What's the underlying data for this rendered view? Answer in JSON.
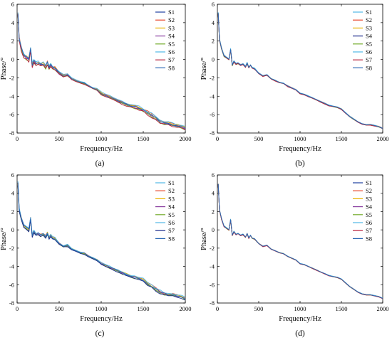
{
  "figure": {
    "panel_labels": [
      "(a)",
      "(b)",
      "(c)",
      "(d)"
    ]
  },
  "chart_data": [
    {
      "type": "line",
      "panel": "(a)",
      "xlabel": "Frequency/Hz",
      "ylabel": "Phase/°",
      "xlim": [
        0,
        2000
      ],
      "ylim": [
        -8,
        6
      ],
      "xticks": [
        0,
        500,
        1000,
        1500,
        2000
      ],
      "yticks": [
        -8,
        -6,
        -4,
        -2,
        0,
        2,
        4,
        6
      ],
      "grid": false,
      "legend_position": "top-right",
      "series_names": [
        "S1",
        "S2",
        "S3",
        "S4",
        "S5",
        "S6",
        "S7",
        "S8"
      ],
      "colors": [
        "#1f3f9f",
        "#e8462b",
        "#e8b100",
        "#8a3fa0",
        "#73ac2b",
        "#4fb7e6",
        "#b7203b",
        "#2a67b3"
      ],
      "x": [
        10,
        25,
        50,
        80,
        110,
        140,
        160,
        180,
        200,
        225,
        250,
        280,
        310,
        340,
        360,
        380,
        400,
        420,
        450,
        500,
        550,
        600,
        650,
        700,
        750,
        800,
        850,
        900,
        950,
        1000,
        1050,
        1100,
        1150,
        1200,
        1250,
        1300,
        1350,
        1400,
        1450,
        1500,
        1550,
        1600,
        1650,
        1700,
        1750,
        1800,
        1850,
        1900,
        1950,
        2000
      ],
      "base": [
        5.0,
        2.2,
        1.2,
        0.4,
        0.2,
        0.0,
        1.1,
        -0.6,
        -0.2,
        -0.5,
        -0.4,
        -0.6,
        -0.5,
        -0.8,
        -0.4,
        -0.9,
        -0.6,
        -0.9,
        -1.0,
        -1.5,
        -1.8,
        -1.7,
        -2.1,
        -2.3,
        -2.5,
        -2.6,
        -2.9,
        -3.1,
        -3.3,
        -3.7,
        -3.9,
        -4.1,
        -4.3,
        -4.5,
        -4.7,
        -4.9,
        -5.1,
        -5.2,
        -5.3,
        -5.5,
        -5.8,
        -6.1,
        -6.4,
        -6.7,
        -6.9,
        -7.0,
        -7.1,
        -7.2,
        -7.3,
        -7.5
      ],
      "spread": [
        0.3,
        0.3,
        0.25,
        0.2,
        0.25,
        0.25,
        0.2,
        0.25,
        0.2,
        0.2,
        0.2,
        0.2,
        0.2,
        0.25,
        0.25,
        0.25,
        0.2,
        0.2,
        0.2,
        0.15,
        0.15,
        0.15,
        0.1,
        0.1,
        0.1,
        0.1,
        0.1,
        0.1,
        0.12,
        0.15,
        0.15,
        0.15,
        0.15,
        0.15,
        0.18,
        0.18,
        0.18,
        0.2,
        0.2,
        0.2,
        0.25,
        0.25,
        0.25,
        0.25,
        0.22,
        0.2,
        0.2,
        0.2,
        0.2,
        0.2
      ],
      "offsets": [
        0.0,
        0.6,
        0.4,
        -0.3,
        -0.6,
        0.8,
        -0.8,
        0.2
      ]
    },
    {
      "type": "line",
      "panel": "(b)",
      "xlabel": "Frequency/Hz",
      "ylabel": "Phase/°",
      "xlim": [
        0,
        2000
      ],
      "ylim": [
        -8,
        6
      ],
      "xticks": [
        0,
        500,
        1000,
        1500,
        2000
      ],
      "yticks": [
        -8,
        -6,
        -4,
        -2,
        0,
        2,
        4,
        6
      ],
      "grid": false,
      "legend_position": "top-right",
      "series_names": [
        "S1",
        "S2",
        "S3",
        "S4",
        "S5",
        "S6",
        "S7",
        "S8"
      ],
      "colors": [
        "#4fb7e6",
        "#e8462b",
        "#e8b100",
        "#1a2a8a",
        "#73ac2b",
        "#4fb7e6",
        "#b7203b",
        "#2a67b3"
      ],
      "x": [
        10,
        25,
        50,
        80,
        110,
        140,
        160,
        180,
        200,
        225,
        250,
        280,
        310,
        340,
        360,
        380,
        400,
        420,
        450,
        500,
        550,
        600,
        650,
        700,
        750,
        800,
        850,
        900,
        950,
        1000,
        1050,
        1100,
        1150,
        1200,
        1250,
        1300,
        1350,
        1400,
        1450,
        1500,
        1550,
        1600,
        1650,
        1700,
        1750,
        1800,
        1850,
        1900,
        1950,
        2000
      ],
      "base": [
        5.0,
        2.2,
        1.2,
        0.4,
        0.2,
        0.0,
        1.1,
        -0.6,
        -0.2,
        -0.5,
        -0.4,
        -0.6,
        -0.5,
        -0.8,
        -0.4,
        -0.9,
        -0.6,
        -0.9,
        -1.0,
        -1.5,
        -1.8,
        -1.7,
        -2.1,
        -2.3,
        -2.5,
        -2.6,
        -2.9,
        -3.1,
        -3.3,
        -3.7,
        -3.8,
        -4.0,
        -4.2,
        -4.4,
        -4.6,
        -4.8,
        -5.0,
        -5.1,
        -5.2,
        -5.4,
        -5.8,
        -6.2,
        -6.5,
        -6.8,
        -7.0,
        -7.1,
        -7.1,
        -7.2,
        -7.3,
        -7.5
      ],
      "spread": [
        0.1,
        0.1,
        0.1,
        0.1,
        0.1,
        0.1,
        0.1,
        0.1,
        0.08,
        0.08,
        0.08,
        0.08,
        0.08,
        0.08,
        0.08,
        0.08,
        0.06,
        0.06,
        0.06,
        0.06,
        0.06,
        0.06,
        0.05,
        0.05,
        0.05,
        0.05,
        0.05,
        0.05,
        0.05,
        0.05,
        0.05,
        0.05,
        0.05,
        0.05,
        0.05,
        0.05,
        0.05,
        0.05,
        0.05,
        0.05,
        0.05,
        0.05,
        0.05,
        0.05,
        0.05,
        0.05,
        0.05,
        0.05,
        0.05,
        0.05
      ],
      "offsets": [
        0.0,
        0.6,
        0.4,
        -0.3,
        -0.6,
        0.8,
        -0.8,
        0.2
      ]
    },
    {
      "type": "line",
      "panel": "(c)",
      "xlabel": "Frequency/Hz",
      "ylabel": "Phase/°",
      "xlim": [
        0,
        2000
      ],
      "ylim": [
        -8,
        6
      ],
      "xticks": [
        0,
        500,
        1000,
        1500,
        2000
      ],
      "yticks": [
        -8,
        -6,
        -4,
        -2,
        0,
        2,
        4,
        6
      ],
      "grid": false,
      "legend_position": "top-right",
      "series_names": [
        "S1",
        "S2",
        "S3",
        "S4",
        "S5",
        "S6",
        "S7",
        "S8"
      ],
      "colors": [
        "#4fb7e6",
        "#e8462b",
        "#e8b100",
        "#8a3fa0",
        "#73ac2b",
        "#4fb7e6",
        "#1a2a8a",
        "#2a67b3"
      ],
      "x": [
        10,
        25,
        50,
        80,
        110,
        140,
        160,
        180,
        200,
        225,
        250,
        280,
        310,
        340,
        360,
        380,
        400,
        420,
        450,
        500,
        550,
        600,
        650,
        700,
        750,
        800,
        850,
        900,
        950,
        1000,
        1050,
        1100,
        1150,
        1200,
        1250,
        1300,
        1350,
        1400,
        1450,
        1500,
        1550,
        1600,
        1650,
        1700,
        1750,
        1800,
        1850,
        1900,
        1950,
        2000
      ],
      "base": [
        5.0,
        2.2,
        1.2,
        0.4,
        0.2,
        0.0,
        1.2,
        -0.6,
        -0.2,
        -0.5,
        -0.4,
        -0.6,
        -0.5,
        -0.8,
        -0.4,
        -0.9,
        -0.6,
        -0.9,
        -1.0,
        -1.5,
        -1.8,
        -1.7,
        -2.1,
        -2.3,
        -2.5,
        -2.6,
        -2.9,
        -3.1,
        -3.3,
        -3.7,
        -3.9,
        -4.1,
        -4.3,
        -4.5,
        -4.7,
        -4.9,
        -5.1,
        -5.2,
        -5.3,
        -5.5,
        -5.9,
        -6.2,
        -6.5,
        -6.8,
        -7.0,
        -7.1,
        -7.1,
        -7.2,
        -7.3,
        -7.5
      ],
      "spread": [
        0.25,
        0.25,
        0.2,
        0.18,
        0.2,
        0.2,
        0.18,
        0.2,
        0.15,
        0.15,
        0.15,
        0.15,
        0.15,
        0.2,
        0.2,
        0.2,
        0.15,
        0.15,
        0.15,
        0.12,
        0.12,
        0.12,
        0.1,
        0.1,
        0.1,
        0.1,
        0.1,
        0.1,
        0.1,
        0.12,
        0.12,
        0.12,
        0.12,
        0.12,
        0.15,
        0.15,
        0.15,
        0.15,
        0.15,
        0.18,
        0.2,
        0.2,
        0.2,
        0.2,
        0.18,
        0.15,
        0.15,
        0.15,
        0.15,
        0.15
      ],
      "offsets": [
        0.0,
        0.6,
        0.4,
        -0.3,
        -0.6,
        0.8,
        -0.8,
        0.2
      ]
    },
    {
      "type": "line",
      "panel": "(d)",
      "xlabel": "Frequency/Hz",
      "ylabel": "Phase/°",
      "xlim": [
        0,
        2000
      ],
      "ylim": [
        -8,
        6
      ],
      "xticks": [
        0,
        500,
        1000,
        1500,
        2000
      ],
      "yticks": [
        -8,
        -6,
        -4,
        -2,
        0,
        2,
        4,
        6
      ],
      "grid": false,
      "legend_position": "top-right",
      "series_names": [
        "S1",
        "S2",
        "S3",
        "S4",
        "S5",
        "S6",
        "S7",
        "S8"
      ],
      "colors": [
        "#1f3f9f",
        "#e8462b",
        "#e8b100",
        "#8a3fa0",
        "#73ac2b",
        "#4fb7e6",
        "#b7203b",
        "#2a67b3"
      ],
      "x": [
        10,
        25,
        50,
        80,
        110,
        140,
        160,
        180,
        200,
        225,
        250,
        280,
        310,
        340,
        360,
        380,
        400,
        420,
        450,
        500,
        550,
        600,
        650,
        700,
        750,
        800,
        850,
        900,
        950,
        1000,
        1050,
        1100,
        1150,
        1200,
        1250,
        1300,
        1350,
        1400,
        1450,
        1500,
        1550,
        1600,
        1650,
        1700,
        1750,
        1800,
        1850,
        1900,
        1950,
        2000
      ],
      "base": [
        5.0,
        2.2,
        1.2,
        0.4,
        0.2,
        0.0,
        1.1,
        -0.6,
        -0.2,
        -0.5,
        -0.4,
        -0.6,
        -0.5,
        -0.8,
        -0.4,
        -0.9,
        -0.6,
        -0.9,
        -1.0,
        -1.5,
        -1.8,
        -1.7,
        -2.1,
        -2.3,
        -2.5,
        -2.6,
        -2.9,
        -3.1,
        -3.3,
        -3.7,
        -3.8,
        -4.0,
        -4.2,
        -4.4,
        -4.6,
        -4.8,
        -5.0,
        -5.1,
        -5.2,
        -5.4,
        -5.8,
        -6.2,
        -6.5,
        -6.8,
        -7.0,
        -7.1,
        -7.1,
        -7.2,
        -7.3,
        -7.5
      ],
      "spread": [
        0.06,
        0.06,
        0.06,
        0.06,
        0.06,
        0.06,
        0.06,
        0.06,
        0.05,
        0.05,
        0.05,
        0.05,
        0.05,
        0.05,
        0.05,
        0.05,
        0.04,
        0.04,
        0.04,
        0.04,
        0.04,
        0.04,
        0.03,
        0.03,
        0.03,
        0.03,
        0.03,
        0.03,
        0.03,
        0.03,
        0.03,
        0.03,
        0.03,
        0.03,
        0.03,
        0.03,
        0.03,
        0.03,
        0.03,
        0.03,
        0.03,
        0.03,
        0.03,
        0.03,
        0.03,
        0.03,
        0.03,
        0.03,
        0.03,
        0.03
      ],
      "offsets": [
        0.0,
        0.6,
        0.4,
        -0.3,
        -0.6,
        0.8,
        -0.8,
        0.2
      ]
    }
  ]
}
